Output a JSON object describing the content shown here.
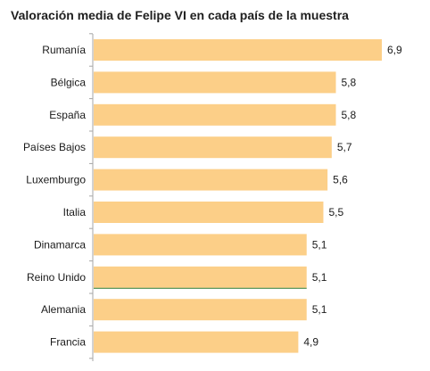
{
  "chart_data": {
    "type": "bar",
    "orientation": "horizontal",
    "title": "Valoración media de Felipe VI en cada país de la muestra",
    "categories": [
      "Rumanía",
      "Bélgica",
      "España",
      "Países Bajos",
      "Luxemburgo",
      "Italia",
      "Dinamarca",
      "Reino Unido",
      "Alemania",
      "Francia"
    ],
    "values": [
      6.9,
      5.8,
      5.8,
      5.7,
      5.6,
      5.5,
      5.1,
      5.1,
      5.1,
      4.9
    ],
    "value_labels": [
      "6,9",
      "5,8",
      "5,8",
      "5,7",
      "5,6",
      "5,5",
      "5,1",
      "5,1",
      "5,1",
      "4,9"
    ],
    "xlim": [
      0,
      7.4
    ],
    "grid": false,
    "legend": "none",
    "colors": {
      "bar": "#FCCF88",
      "axis": "#A6A6A6",
      "highlight_line": "#2E7D32"
    },
    "highlight_category": "Reino Unido"
  }
}
